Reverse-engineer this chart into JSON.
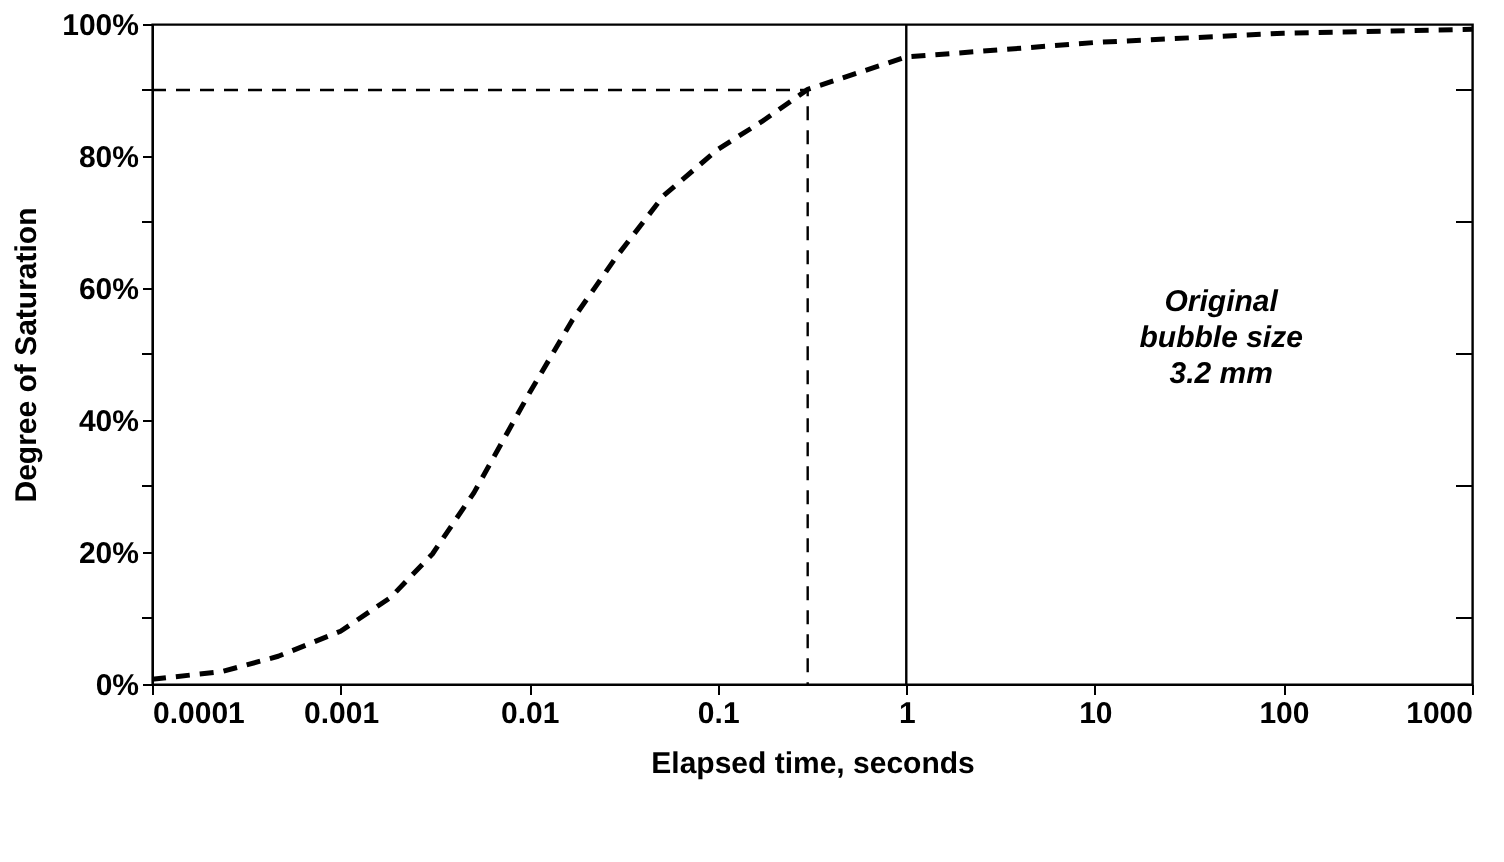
{
  "chart_data": {
    "type": "line",
    "xlabel": "Elapsed time, seconds",
    "ylabel": "Degree of Saturation",
    "log": "x",
    "xlim": [
      0.0001,
      1000
    ],
    "xticks": [
      0.0001,
      0.001,
      0.01,
      0.1,
      1,
      10,
      100,
      1000
    ],
    "ylim": [
      0,
      100
    ],
    "yticks": [
      {
        "value": 0,
        "label": "0%"
      },
      {
        "value": 10,
        "label": null
      },
      {
        "value": 20,
        "label": "20%"
      },
      {
        "value": 30,
        "label": null
      },
      {
        "value": 40,
        "label": "40%"
      },
      {
        "value": 50,
        "label": null
      },
      {
        "value": 60,
        "label": "60%"
      },
      {
        "value": 70,
        "label": null
      },
      {
        "value": 80,
        "label": "80%"
      },
      {
        "value": 90,
        "label": null
      },
      {
        "value": 100,
        "label": "100%"
      }
    ],
    "grid": false,
    "series": [
      {
        "color": "#000000",
        "line_style": "dashed",
        "x": [
          0.0001,
          0.000236,
          0.000467,
          0.001,
          0.00184,
          0.00307,
          0.0051,
          0.01,
          0.017,
          0.0288,
          0.0517,
          0.1,
          0.171,
          0.3,
          1,
          10,
          100,
          1000
        ],
        "values": [
          0.7,
          1.9,
          4.2,
          8.0,
          13.1,
          19.7,
          29.0,
          44.0,
          55.2,
          64.6,
          74.0,
          81.0,
          85.2,
          90.1,
          95.0,
          97.2,
          98.6,
          99.2
        ]
      },
      {
        "color": "#000000",
        "line_style": "dashed",
        "x": [
          0.0001,
          0.3,
          0.3
        ],
        "values": [
          90,
          90,
          0
        ]
      }
    ],
    "ref_lines": [
      {
        "axis": "x",
        "value": 1,
        "color": "#000000",
        "line_style": "solid"
      }
    ],
    "annotations": [
      "Original",
      "bubble size",
      "3.2 mm"
    ]
  }
}
